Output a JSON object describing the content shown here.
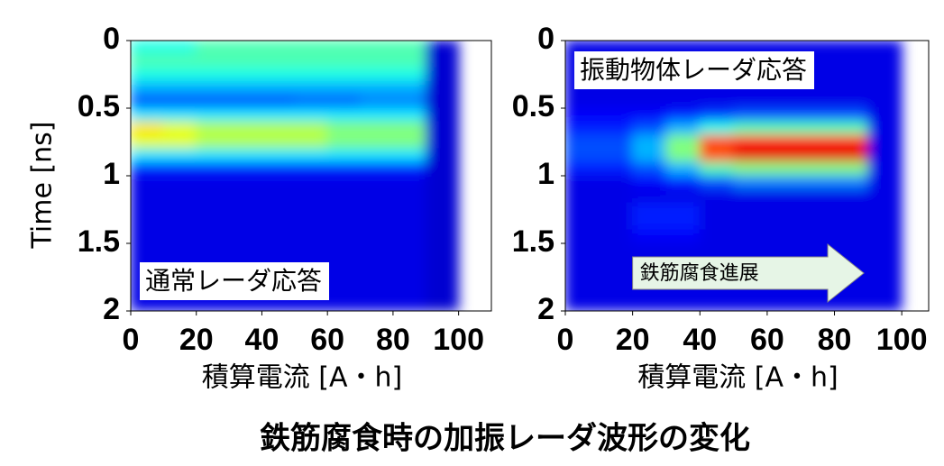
{
  "title": "鉄筋腐食時の加振レーダ波形の変化",
  "chart_data": [
    {
      "type": "heatmap",
      "colormap": "jet",
      "zlim": [
        0,
        10
      ],
      "xlabel": "積算電流 [A・h]",
      "ylabel": "Time [ns]",
      "annotation": "通常レーダ応答",
      "xlim": [
        0,
        110
      ],
      "xticks": [
        0,
        20,
        40,
        60,
        80,
        100
      ],
      "ylim": [
        0,
        2
      ],
      "yticks": [
        0,
        0.5,
        1,
        1.5,
        2
      ],
      "y_reversed": true,
      "x": [
        0,
        10,
        20,
        30,
        40,
        50,
        60,
        70,
        80,
        90
      ],
      "y": [
        0,
        0.1,
        0.2,
        0.3,
        0.4,
        0.5,
        0.6,
        0.7,
        0.8,
        0.9,
        1.0,
        1.1,
        1.2,
        1.3,
        1.4,
        1.5,
        1.6,
        1.7,
        1.8,
        1.9
      ],
      "z": [
        [
          4,
          4,
          4.5,
          4.5,
          4.5,
          4.5,
          4.5,
          4.5,
          4.5,
          0.8
        ],
        [
          4.5,
          4.5,
          4.5,
          4.5,
          4.5,
          4.5,
          4.5,
          4.5,
          4.5,
          0.8
        ],
        [
          4,
          4,
          4,
          4,
          4,
          4,
          4,
          4,
          4,
          0.8
        ],
        [
          3,
          3,
          3,
          3,
          3,
          3,
          3,
          3,
          3,
          0.8
        ],
        [
          2,
          2,
          2,
          2,
          2,
          2.2,
          2.2,
          2.5,
          2.5,
          0.8
        ],
        [
          3.5,
          3.5,
          3.5,
          3.5,
          3.5,
          3.5,
          3.5,
          3.5,
          3.5,
          0.8
        ],
        [
          6.5,
          6,
          5.5,
          5.5,
          5.5,
          5.5,
          5,
          5,
          5,
          0.8
        ],
        [
          6,
          6,
          5.5,
          5.5,
          5.5,
          5.5,
          5,
          5,
          5,
          0.8
        ],
        [
          3.5,
          3.5,
          3.5,
          3.5,
          3.5,
          3.5,
          3.5,
          3.5,
          3.5,
          0.8
        ],
        [
          1.5,
          1.5,
          1.5,
          1.5,
          1.5,
          1.5,
          1.5,
          1.5,
          1.5,
          0.8
        ],
        [
          1,
          1,
          1,
          1,
          1,
          1,
          1,
          1,
          1,
          0.8
        ],
        [
          1,
          1,
          1,
          1,
          1,
          1,
          1,
          1,
          1,
          0.8
        ],
        [
          1,
          1,
          1,
          1,
          1,
          1,
          1,
          1,
          1,
          0.8
        ],
        [
          1,
          1,
          1,
          1,
          1,
          1,
          1,
          1,
          1,
          0.8
        ],
        [
          1,
          1,
          1,
          1,
          1,
          1,
          1,
          1,
          1,
          0.8
        ],
        [
          1,
          1,
          1,
          1,
          1,
          1,
          1,
          1,
          1,
          0.8
        ],
        [
          1,
          1,
          1,
          1,
          1,
          1,
          1,
          1,
          1,
          0.8
        ],
        [
          1,
          1,
          1,
          1,
          1,
          1,
          1,
          1,
          1,
          0.8
        ],
        [
          1,
          1,
          1,
          1,
          1,
          1,
          1,
          1,
          1,
          0.8
        ],
        [
          1,
          1,
          1,
          1,
          1,
          1,
          1,
          1,
          1,
          0.8
        ]
      ]
    },
    {
      "type": "heatmap",
      "colormap": "jet",
      "zlim": [
        0,
        10
      ],
      "xlabel": "積算電流 [A・h]",
      "annotation": "振動物体レーダ応答",
      "arrow_label": "鉄筋腐食進展",
      "xlim": [
        0,
        108
      ],
      "xticks": [
        0,
        20,
        40,
        60,
        80,
        100
      ],
      "ylim": [
        0,
        2
      ],
      "yticks": [
        0,
        0.5,
        1,
        1.5,
        2
      ],
      "y_reversed": true,
      "x": [
        0,
        10,
        20,
        30,
        40,
        50,
        60,
        70,
        80,
        90
      ],
      "y": [
        0,
        0.1,
        0.2,
        0.3,
        0.4,
        0.5,
        0.6,
        0.7,
        0.8,
        0.9,
        1.0,
        1.1,
        1.2,
        1.3,
        1.4,
        1.5,
        1.6,
        1.7,
        1.8,
        1.9
      ],
      "z": [
        [
          1,
          1,
          1,
          1,
          1,
          1,
          1,
          1,
          1,
          1
        ],
        [
          1,
          1,
          1,
          1,
          1,
          1,
          1,
          1,
          1,
          1
        ],
        [
          1,
          1,
          1,
          1,
          1,
          1,
          1,
          1,
          1,
          1
        ],
        [
          1,
          1,
          1,
          1,
          1,
          1,
          1,
          1,
          1,
          1
        ],
        [
          1,
          1,
          1,
          1,
          1,
          1,
          1,
          1,
          1,
          1
        ],
        [
          1.2,
          1.2,
          1.2,
          1.5,
          1.8,
          2,
          2,
          2,
          2,
          1
        ],
        [
          1.5,
          1.5,
          2,
          3,
          4,
          4.5,
          4.5,
          4.5,
          4.5,
          1
        ],
        [
          2,
          2,
          3,
          5,
          8,
          8.5,
          8.5,
          8.5,
          8.5,
          1
        ],
        [
          2,
          2,
          3,
          5,
          8,
          9,
          9,
          9,
          9,
          1
        ],
        [
          1.5,
          1.5,
          2,
          3,
          4.5,
          5,
          5,
          5,
          5,
          1
        ],
        [
          1,
          1,
          1.2,
          1.5,
          2,
          2.5,
          2.5,
          2.5,
          2.5,
          1
        ],
        [
          1,
          1,
          1,
          1,
          1,
          1,
          1,
          1,
          1,
          1
        ],
        [
          1,
          1,
          1.5,
          1.5,
          1,
          1,
          1,
          1,
          1,
          1
        ],
        [
          1,
          1,
          1.5,
          1.5,
          1,
          1,
          1,
          1,
          1,
          1
        ],
        [
          1,
          1,
          1.2,
          1.2,
          1,
          1,
          1,
          1,
          1,
          1
        ],
        [
          1,
          1,
          1,
          1,
          1,
          1,
          1,
          1,
          1,
          1
        ],
        [
          1,
          1,
          1,
          1,
          1,
          1,
          1,
          1,
          1,
          1
        ],
        [
          1,
          1,
          1,
          1,
          1,
          1,
          1,
          1,
          1,
          1
        ],
        [
          1,
          1,
          1,
          1,
          1,
          1,
          1,
          1,
          1,
          1
        ],
        [
          1,
          1,
          1,
          1,
          1,
          1,
          1,
          1,
          1,
          1
        ]
      ]
    }
  ]
}
